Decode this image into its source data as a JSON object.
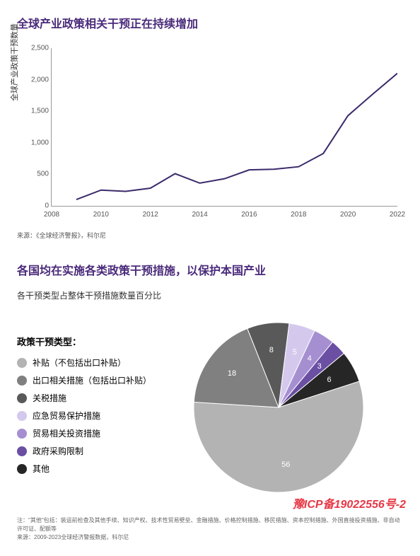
{
  "line_chart": {
    "type": "line",
    "title": "全球产业政策相关干预正在持续增加",
    "y_axis_label": "全球产业政策干预数量",
    "ylim": [
      0,
      2500
    ],
    "yticks": [
      0,
      500,
      1000,
      1500,
      2000,
      2500
    ],
    "xlim": [
      2008,
      2022
    ],
    "xticks": [
      2008,
      2010,
      2012,
      2014,
      2016,
      2018,
      2020,
      2022
    ],
    "xvalues": [
      2009,
      2010,
      2011,
      2012,
      2013,
      2014,
      2015,
      2016,
      2017,
      2018,
      2019,
      2020,
      2021,
      2022
    ],
    "yvalues": [
      100,
      250,
      230,
      280,
      510,
      360,
      430,
      570,
      580,
      620,
      830,
      1430,
      1770,
      2100
    ],
    "line_color": "#3b2a6b",
    "line_width": 2,
    "source": "来源：《全球经济警报》，科尔尼"
  },
  "pie_chart": {
    "type": "pie",
    "title": "各国均在实施各类政策干预措施，以保护本国产业",
    "subtitle": "各干预类型占整体干预措施数量百分比",
    "legend_title": "政策干预类型：",
    "slices": [
      {
        "label": "补贴（不包括出口补贴）",
        "value": 56,
        "color": "#b3b3b3"
      },
      {
        "label": "出口相关措施（包括出口补贴）",
        "value": 18,
        "color": "#808080"
      },
      {
        "label": "关税措施",
        "value": 8,
        "color": "#595959"
      },
      {
        "label": "应急贸易保护措施",
        "value": 5,
        "color": "#d4c9ed"
      },
      {
        "label": "贸易相关投资措施",
        "value": 4,
        "color": "#a58fd1"
      },
      {
        "label": "政府采购限制",
        "value": 3,
        "color": "#6a4fa3"
      },
      {
        "label": "其他",
        "value": 6,
        "color": "#262626"
      }
    ],
    "radius": 120,
    "label_color": "#ffffff",
    "label_fontsize": 11
  },
  "footnote": {
    "line1": "注：\"其他\"包括：装运前检查及其他手续、知识产权、技术性贸易壁垒、金融措施、价格控制措施、移民措施、资本控制措施、外国直接投资措施、非自动许可证、配额等",
    "line2": "来源：2009-2023全球经济警报数据，科尔尼"
  },
  "watermark": "豫ICP备19022556号-2"
}
